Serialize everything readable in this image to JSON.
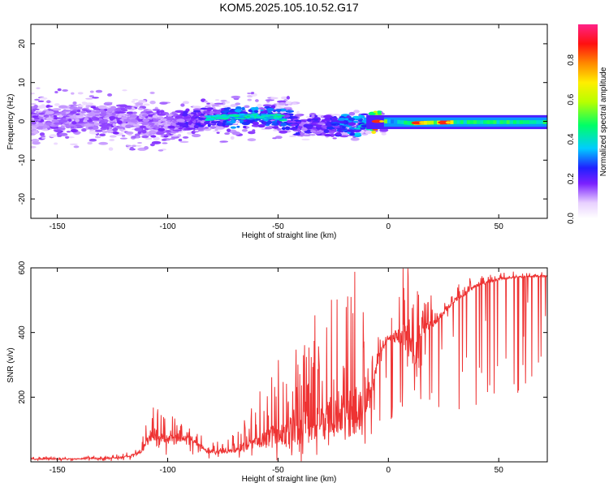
{
  "page_title": "KOM5.2025.105.10.52.G17",
  "chart_data": [
    {
      "type": "heatmap",
      "xlabel": "Height of straight line (km)",
      "ylabel": "Frequency (Hz)",
      "xlim": [
        -162,
        72
      ],
      "ylim": [
        -25,
        25
      ],
      "x_ticks": [
        -150,
        -100,
        -50,
        0,
        50
      ],
      "x_tick_labels": [
        "-150",
        "-100",
        "-50",
        "0",
        "50"
      ],
      "y_ticks": [
        -20,
        -10,
        0,
        10,
        20
      ],
      "y_tick_labels": [
        "-20",
        "-10",
        "0",
        "10",
        "20"
      ],
      "colorbar": {
        "label": "Normalized spectral amplitude",
        "range": [
          0,
          0.98
        ],
        "ticks": [
          0.0,
          0.2,
          0.4,
          0.6,
          0.8
        ],
        "tick_labels": [
          "0.0",
          "0.2",
          "0.4",
          "0.6",
          "0.8"
        ]
      },
      "ridge": [
        {
          "x": -160,
          "f": 0.5,
          "amp": 0.15
        },
        {
          "x": -150,
          "f": 0.3,
          "amp": 0.15
        },
        {
          "x": -140,
          "f": 0.5,
          "amp": 0.15
        },
        {
          "x": -130,
          "f": 0.8,
          "amp": 0.15
        },
        {
          "x": -120,
          "f": 0.3,
          "amp": 0.15
        },
        {
          "x": -110,
          "f": -0.5,
          "amp": 0.15
        },
        {
          "x": -100,
          "f": -0.8,
          "amp": 0.15
        },
        {
          "x": -90,
          "f": 0.5,
          "amp": 0.2
        },
        {
          "x": -80,
          "f": 1.0,
          "amp": 0.2
        },
        {
          "x": -70,
          "f": 1.2,
          "amp": 0.3
        },
        {
          "x": -60,
          "f": 1.3,
          "amp": 0.3
        },
        {
          "x": -50,
          "f": 1.2,
          "amp": 0.3
        },
        {
          "x": -40,
          "f": -1.0,
          "amp": 0.2
        },
        {
          "x": -30,
          "f": -1.2,
          "amp": 0.2
        },
        {
          "x": -20,
          "f": -1.0,
          "amp": 0.3
        },
        {
          "x": -10,
          "f": -0.6,
          "amp": 0.35
        },
        {
          "x": -5,
          "f": 0.0,
          "amp": 0.85
        },
        {
          "x": 0,
          "f": 0.0,
          "amp": 0.3
        },
        {
          "x": 5,
          "f": -0.2,
          "amp": 0.45
        },
        {
          "x": 10,
          "f": -0.5,
          "amp": 0.5
        },
        {
          "x": 15,
          "f": -0.4,
          "amp": 0.9
        },
        {
          "x": 20,
          "f": -0.3,
          "amp": 0.45
        },
        {
          "x": 25,
          "f": -0.3,
          "amp": 0.9
        },
        {
          "x": 30,
          "f": -0.2,
          "amp": 0.45
        },
        {
          "x": 40,
          "f": -0.2,
          "amp": 0.45
        },
        {
          "x": 50,
          "f": -0.2,
          "amp": 0.45
        },
        {
          "x": 60,
          "f": -0.2,
          "amp": 0.45
        },
        {
          "x": 72,
          "f": -0.2,
          "amp": 0.45
        }
      ]
    },
    {
      "type": "line",
      "xlabel": "Height of straight line (km)",
      "ylabel": "SNR (v/v)",
      "xlim": [
        -162,
        72
      ],
      "ylim": [
        0,
        600
      ],
      "x_ticks": [
        -150,
        -100,
        -50,
        0,
        50
      ],
      "x_tick_labels": [
        "-150",
        "-100",
        "-50",
        "0",
        "50"
      ],
      "y_ticks": [
        200,
        400,
        600
      ],
      "y_tick_labels": [
        "200",
        "400",
        "600"
      ],
      "color": "#ee3333",
      "envelope": [
        {
          "x": -162,
          "base": 8,
          "spike": 5
        },
        {
          "x": -130,
          "base": 10,
          "spike": 5
        },
        {
          "x": -120,
          "base": 14,
          "spike": 10
        },
        {
          "x": -112,
          "base": 30,
          "spike": 20
        },
        {
          "x": -108,
          "base": 80,
          "spike": 80
        },
        {
          "x": -100,
          "base": 70,
          "spike": 50
        },
        {
          "x": -90,
          "base": 75,
          "spike": 40
        },
        {
          "x": -82,
          "base": 30,
          "spike": 20
        },
        {
          "x": -70,
          "base": 35,
          "spike": 40
        },
        {
          "x": -60,
          "base": 60,
          "spike": 90
        },
        {
          "x": -50,
          "base": 80,
          "spike": 150
        },
        {
          "x": -40,
          "base": 100,
          "spike": 200
        },
        {
          "x": -30,
          "base": 120,
          "spike": 220
        },
        {
          "x": -20,
          "base": 150,
          "spike": 260
        },
        {
          "x": -14,
          "base": 160,
          "spike": 300
        },
        {
          "x": -8,
          "base": 200,
          "spike": 130
        },
        {
          "x": -4,
          "base": 340,
          "spike": 40
        },
        {
          "x": 0,
          "base": 380,
          "spike": 30
        },
        {
          "x": 5,
          "base": 390,
          "spike": 120
        },
        {
          "x": 8,
          "base": 380,
          "spike": 200
        },
        {
          "x": 12,
          "base": 330,
          "spike": 150
        },
        {
          "x": 16,
          "base": 410,
          "spike": 80
        },
        {
          "x": 22,
          "base": 440,
          "spike": 40
        },
        {
          "x": 30,
          "base": 500,
          "spike": 30
        },
        {
          "x": 40,
          "base": 545,
          "spike": 20
        },
        {
          "x": 50,
          "base": 565,
          "spike": 15
        },
        {
          "x": 60,
          "base": 572,
          "spike": 12
        },
        {
          "x": 72,
          "base": 575,
          "spike": 10
        }
      ]
    }
  ]
}
